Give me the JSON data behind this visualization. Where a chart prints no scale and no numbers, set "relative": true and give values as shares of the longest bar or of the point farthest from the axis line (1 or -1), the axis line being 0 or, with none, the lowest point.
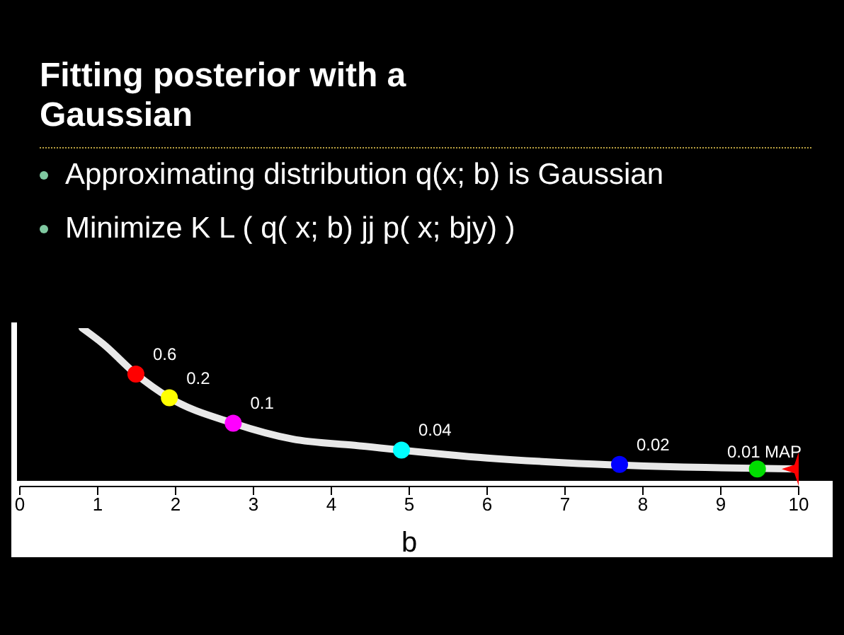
{
  "chart_data": {
    "type": "scatter",
    "title": "Fitting posterior with a Gaussian",
    "annotations": [
      "Approximating distribution q(x; b) is Gaussian",
      "Minimize K L ( q( x; b) jj p( x; bjy) )",
      {
        "text": "0.6",
        "x": 1.49,
        "y": 0.71
      },
      {
        "text": "0.2",
        "x": 1.92,
        "y": 0.56
      },
      {
        "text": "0.1",
        "x": 2.74,
        "y": 0.4
      },
      {
        "text": "0.04",
        "x": 4.9,
        "y": 0.23
      },
      {
        "text": "0.02",
        "x": 7.7,
        "y": 0.14
      },
      {
        "text": "0.01",
        "x": 9.47,
        "y": 0.11
      },
      {
        "text": "MAP",
        "x": 10,
        "y": 0.11
      }
    ],
    "xlabel": "b",
    "xlim": [
      0,
      10
    ],
    "xticks": [
      0,
      1,
      2,
      3,
      4,
      5,
      6,
      7,
      8,
      9,
      10
    ],
    "relative": true,
    "series": [
      {
        "type": "line",
        "color": "#e8e8e8",
        "x": [
          0.8,
          1.07,
          1.49,
          1.92,
          2.74,
          3.5,
          4.3,
          6,
          7.0,
          8.8,
          10
        ],
        "values": [
          1.0,
          0.9,
          0.71,
          0.56,
          0.4,
          0.3,
          0.26,
          0.18,
          0.15,
          0.12,
          0.11
        ]
      },
      {
        "type": "scatter",
        "marker": "circle",
        "x": [
          1.49,
          1.92,
          2.74,
          4.9,
          7.7,
          9.47
        ],
        "values": [
          0.71,
          0.56,
          0.4,
          0.23,
          0.14,
          0.11
        ],
        "colors": [
          "#ff0000",
          "#ffff00",
          "#ff00ff",
          "#00ffff",
          "#0000ff",
          "#00dd00"
        ]
      },
      {
        "type": "scatter",
        "marker": "star",
        "color": "#ff0000",
        "x": [
          10
        ],
        "values": [
          0.11
        ]
      }
    ]
  }
}
